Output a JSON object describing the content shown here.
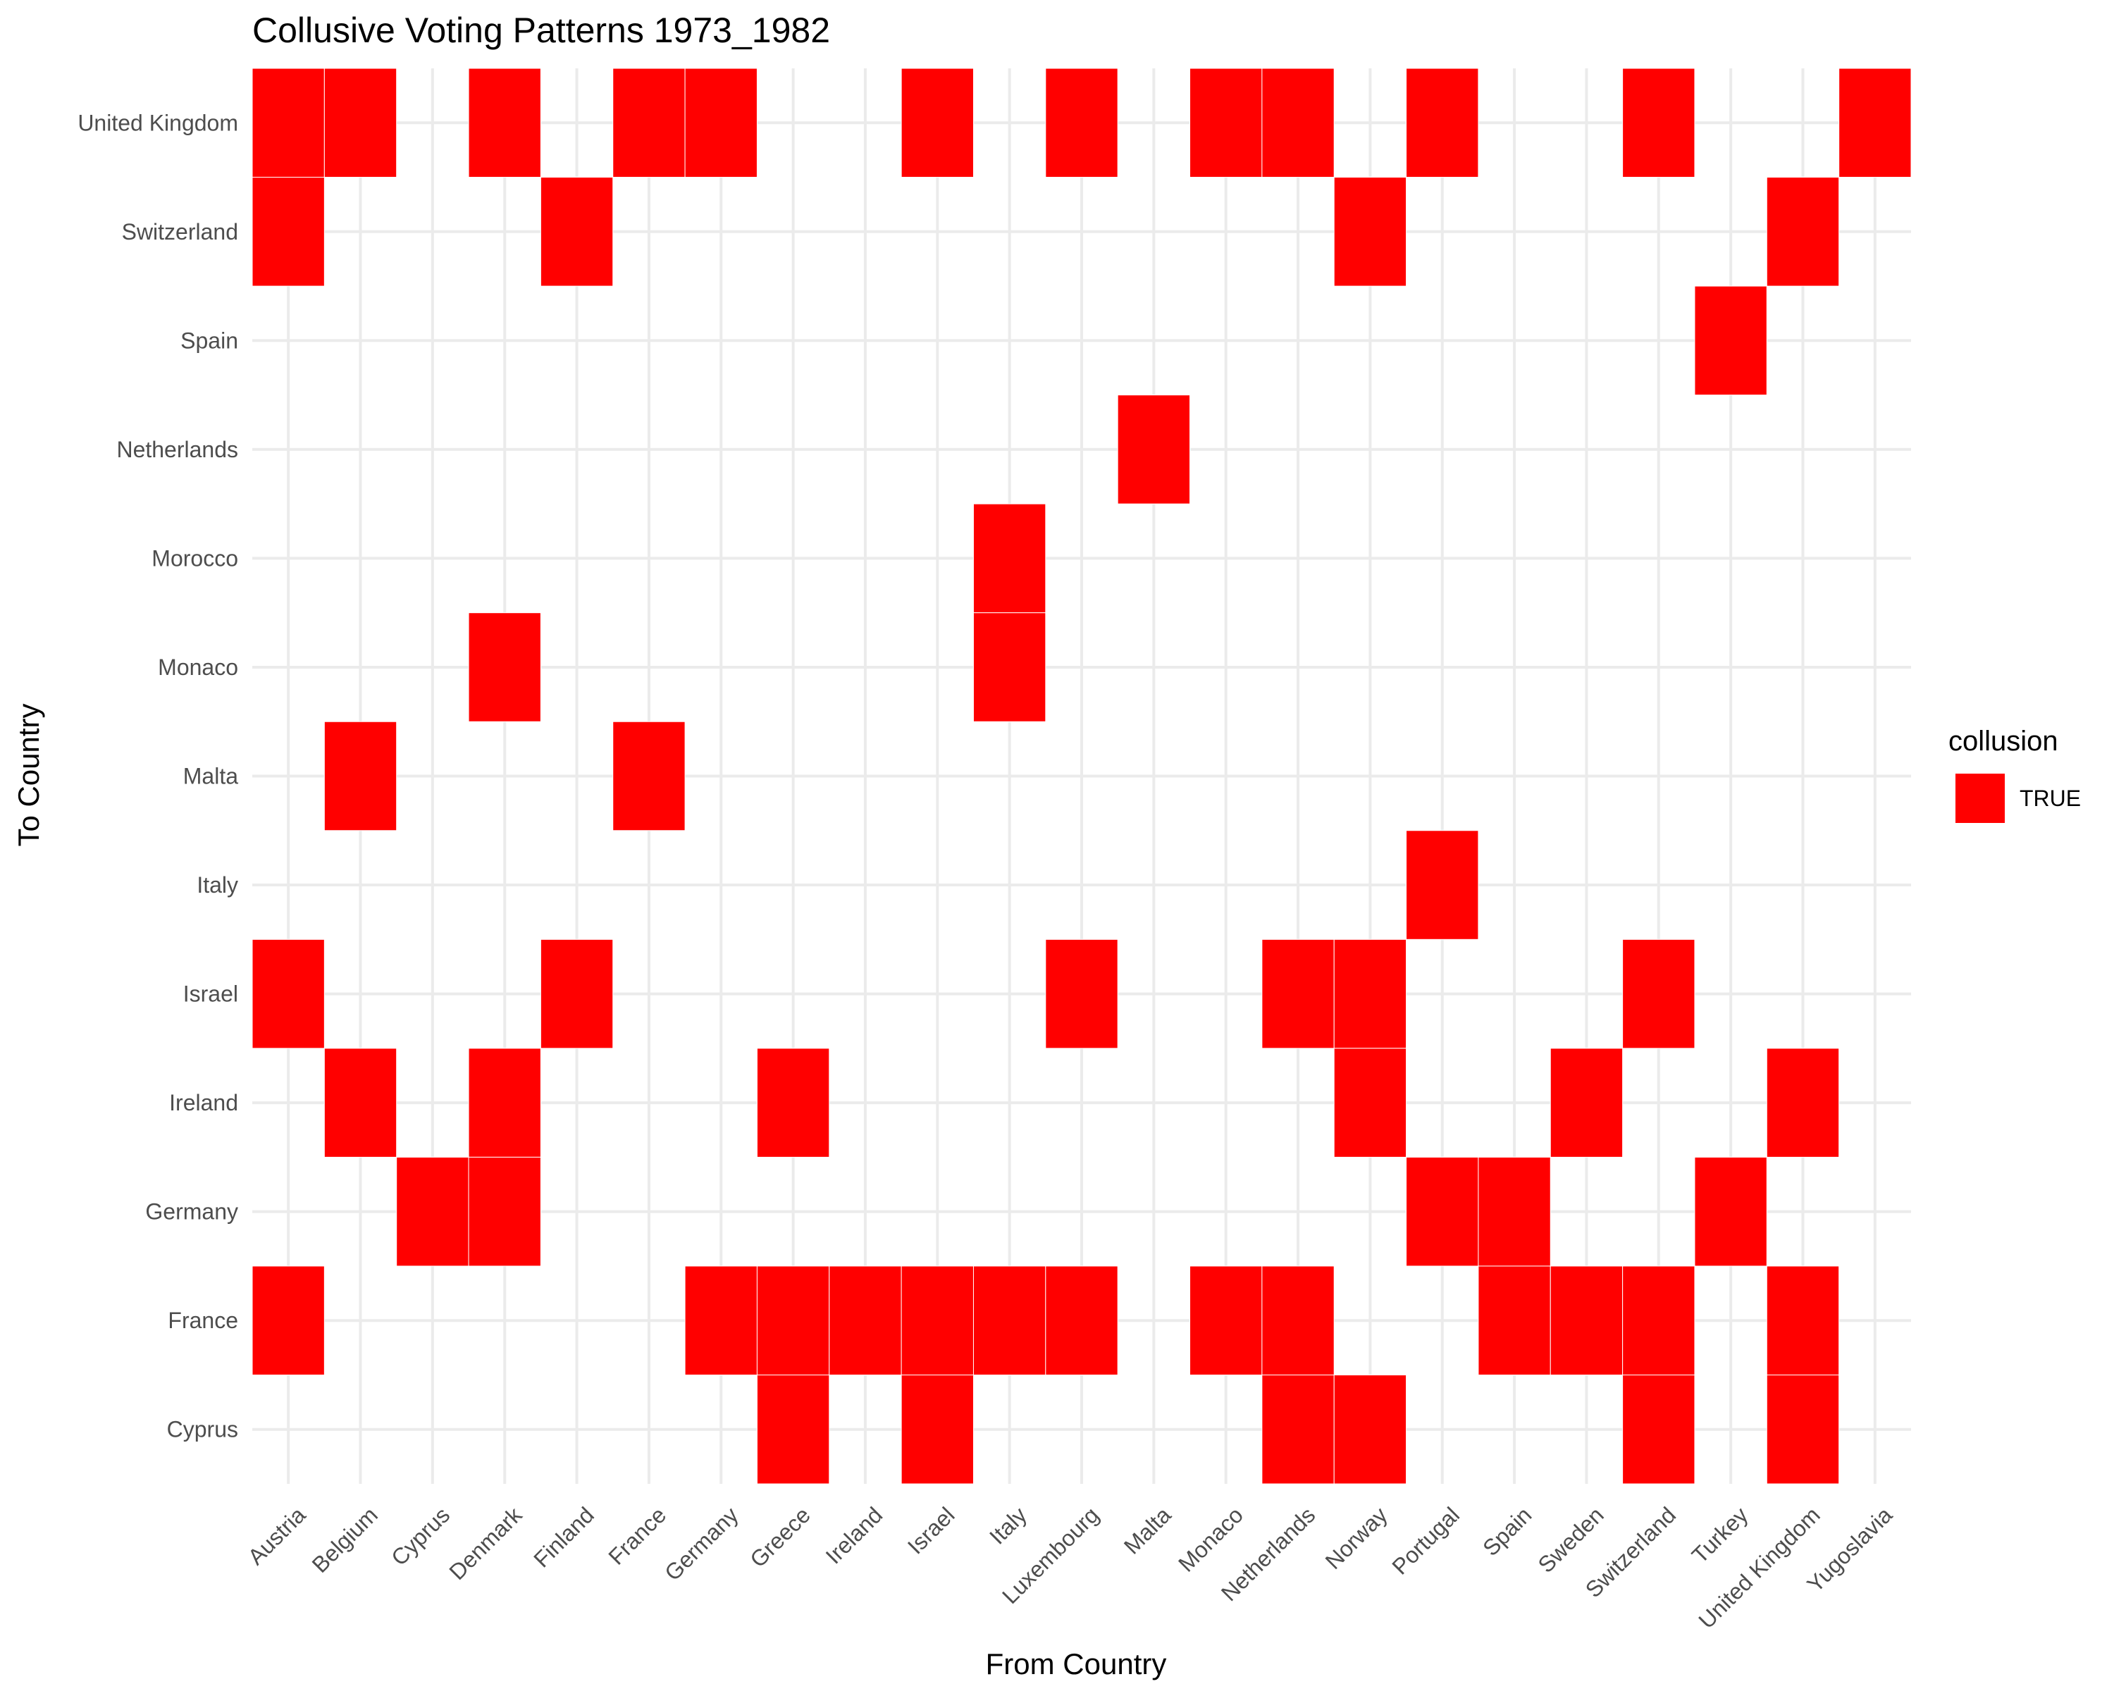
{
  "chart_data": {
    "type": "heatmap",
    "title": "Collusive Voting Patterns 1973_1982",
    "xlabel": "From Country",
    "ylabel": "To Country",
    "x_categories": [
      "Austria",
      "Belgium",
      "Cyprus",
      "Denmark",
      "Finland",
      "France",
      "Germany",
      "Greece",
      "Ireland",
      "Israel",
      "Italy",
      "Luxembourg",
      "Malta",
      "Monaco",
      "Netherlands",
      "Norway",
      "Portugal",
      "Spain",
      "Sweden",
      "Switzerland",
      "Turkey",
      "United Kingdom",
      "Yugoslavia"
    ],
    "y_categories": [
      "Cyprus",
      "France",
      "Germany",
      "Ireland",
      "Israel",
      "Italy",
      "Malta",
      "Monaco",
      "Morocco",
      "Netherlands",
      "Spain",
      "Switzerland",
      "United Kingdom"
    ],
    "fill_color": "#ff0000",
    "legend": {
      "title": "collusion",
      "entries": [
        {
          "label": "TRUE",
          "color": "#ff0000"
        }
      ],
      "position": "right"
    },
    "grid": true,
    "cells": [
      {
        "from": "Austria",
        "to": "United Kingdom"
      },
      {
        "from": "Belgium",
        "to": "United Kingdom"
      },
      {
        "from": "Denmark",
        "to": "United Kingdom"
      },
      {
        "from": "France",
        "to": "United Kingdom"
      },
      {
        "from": "Germany",
        "to": "United Kingdom"
      },
      {
        "from": "Israel",
        "to": "United Kingdom"
      },
      {
        "from": "Luxembourg",
        "to": "United Kingdom"
      },
      {
        "from": "Monaco",
        "to": "United Kingdom"
      },
      {
        "from": "Netherlands",
        "to": "United Kingdom"
      },
      {
        "from": "Portugal",
        "to": "United Kingdom"
      },
      {
        "from": "Switzerland",
        "to": "United Kingdom"
      },
      {
        "from": "Yugoslavia",
        "to": "United Kingdom"
      },
      {
        "from": "Austria",
        "to": "Switzerland"
      },
      {
        "from": "Finland",
        "to": "Switzerland"
      },
      {
        "from": "Norway",
        "to": "Switzerland"
      },
      {
        "from": "United Kingdom",
        "to": "Switzerland"
      },
      {
        "from": "Turkey",
        "to": "Spain"
      },
      {
        "from": "Malta",
        "to": "Netherlands"
      },
      {
        "from": "Italy",
        "to": "Morocco"
      },
      {
        "from": "Denmark",
        "to": "Monaco"
      },
      {
        "from": "Italy",
        "to": "Monaco"
      },
      {
        "from": "Belgium",
        "to": "Malta"
      },
      {
        "from": "France",
        "to": "Malta"
      },
      {
        "from": "Portugal",
        "to": "Italy"
      },
      {
        "from": "Austria",
        "to": "Israel"
      },
      {
        "from": "Finland",
        "to": "Israel"
      },
      {
        "from": "Luxembourg",
        "to": "Israel"
      },
      {
        "from": "Netherlands",
        "to": "Israel"
      },
      {
        "from": "Norway",
        "to": "Israel"
      },
      {
        "from": "Switzerland",
        "to": "Israel"
      },
      {
        "from": "Belgium",
        "to": "Ireland"
      },
      {
        "from": "Denmark",
        "to": "Ireland"
      },
      {
        "from": "Greece",
        "to": "Ireland"
      },
      {
        "from": "Norway",
        "to": "Ireland"
      },
      {
        "from": "Sweden",
        "to": "Ireland"
      },
      {
        "from": "United Kingdom",
        "to": "Ireland"
      },
      {
        "from": "Cyprus",
        "to": "Germany"
      },
      {
        "from": "Denmark",
        "to": "Germany"
      },
      {
        "from": "Portugal",
        "to": "Germany"
      },
      {
        "from": "Spain",
        "to": "Germany"
      },
      {
        "from": "Turkey",
        "to": "Germany"
      },
      {
        "from": "Austria",
        "to": "France"
      },
      {
        "from": "Germany",
        "to": "France"
      },
      {
        "from": "Greece",
        "to": "France"
      },
      {
        "from": "Ireland",
        "to": "France"
      },
      {
        "from": "Israel",
        "to": "France"
      },
      {
        "from": "Italy",
        "to": "France"
      },
      {
        "from": "Luxembourg",
        "to": "France"
      },
      {
        "from": "Monaco",
        "to": "France"
      },
      {
        "from": "Netherlands",
        "to": "France"
      },
      {
        "from": "Spain",
        "to": "France"
      },
      {
        "from": "Sweden",
        "to": "France"
      },
      {
        "from": "Switzerland",
        "to": "France"
      },
      {
        "from": "United Kingdom",
        "to": "France"
      },
      {
        "from": "Greece",
        "to": "Cyprus"
      },
      {
        "from": "Israel",
        "to": "Cyprus"
      },
      {
        "from": "Netherlands",
        "to": "Cyprus"
      },
      {
        "from": "Norway",
        "to": "Cyprus"
      },
      {
        "from": "Switzerland",
        "to": "Cyprus"
      },
      {
        "from": "United Kingdom",
        "to": "Cyprus"
      }
    ]
  }
}
